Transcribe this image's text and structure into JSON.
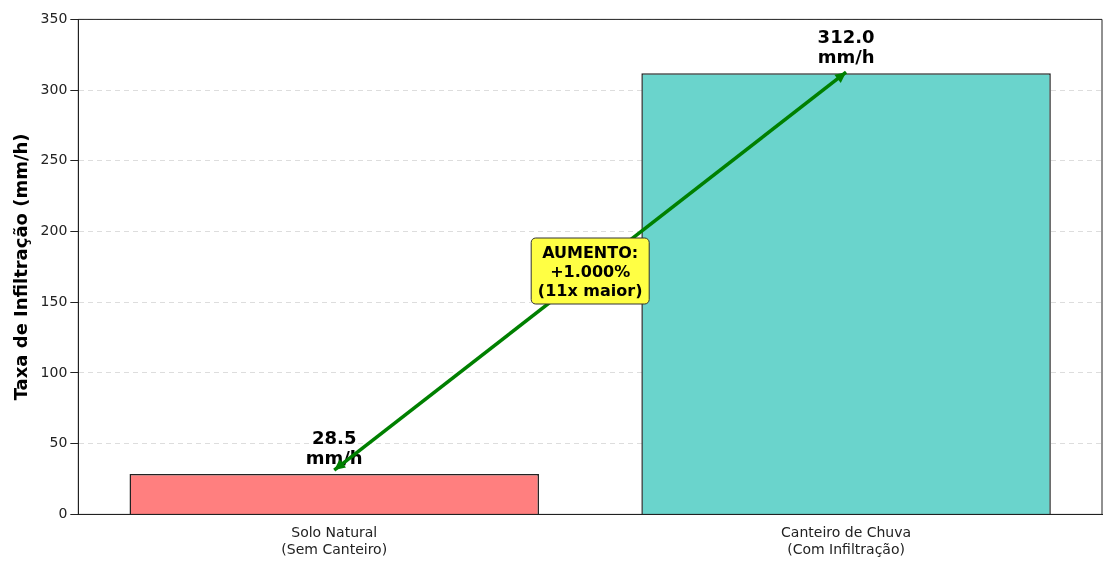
{
  "chart_data": {
    "type": "bar",
    "ylabel": "Taxa de Infiltração (mm/h)",
    "categories": [
      "Solo Natural\n(Sem Canteiro)",
      "Canteiro de Chuva\n(Com Infiltração)"
    ],
    "values": [
      28.5,
      312.0
    ],
    "colors": [
      "#ff7f7f",
      "#6ad4cc"
    ],
    "value_labels": [
      "28.5\nmm/h",
      "312.0\nmm/h"
    ],
    "ylim": [
      0,
      350
    ],
    "yticks": [
      0,
      50,
      100,
      150,
      200,
      250,
      300,
      350
    ],
    "grid": "y",
    "legend": false,
    "annotations": [
      "AUMENTO:\n+1.000%\n(11x maior)"
    ]
  }
}
